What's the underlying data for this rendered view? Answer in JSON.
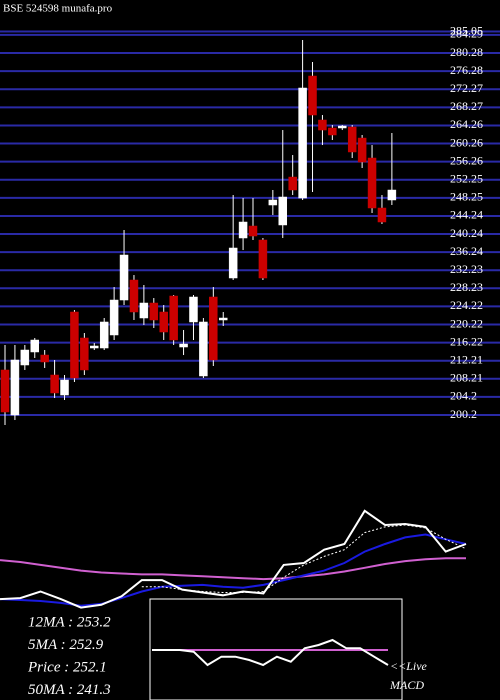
{
  "chart_data": [
    {
      "type": "candlestick",
      "title": "BSE 524598  munafa.pro",
      "categories": [
        null,
        null,
        null,
        null,
        null,
        null,
        null,
        null,
        null,
        null,
        null,
        null,
        null,
        null,
        null,
        null,
        null,
        null,
        null,
        null,
        null,
        null,
        null,
        null,
        null,
        null,
        null,
        null,
        null,
        null,
        null,
        null,
        null,
        null,
        null,
        null,
        null,
        null,
        null,
        null
      ],
      "open": [
        210.16,
        200.2,
        211.26,
        214.14,
        213.47,
        209.05,
        204.62,
        222.99,
        217.24,
        215.02,
        215.02,
        217.9,
        225.64,
        230.07,
        221.66,
        224.98,
        222.99,
        226.53,
        215.24,
        220.78,
        208.83,
        226.31,
        221.22,
        230.51,
        239.36,
        242.01,
        238.92,
        246.66,
        242.24,
        252.85,
        248.21,
        275.2,
        265.47,
        263.7,
        263.7,
        263.92,
        261.48,
        257.06,
        246.0,
        247.77
      ],
      "high": [
        215.69,
        215.69,
        215.69,
        217.24,
        214.58,
        212.37,
        209.05,
        223.43,
        218.34,
        216.13,
        221.66,
        228.52,
        241.13,
        231.17,
        228.96,
        226.08,
        224.54,
        226.75,
        219.01,
        226.75,
        221.66,
        228.52,
        222.99,
        248.87,
        248.21,
        248.21,
        239.36,
        249.98,
        263.25,
        257.72,
        283.16,
        278.3,
        266.57,
        264.36,
        264.36,
        264.36,
        262.15,
        259.93,
        248.87,
        262.59
      ],
      "low": [
        197.99,
        199.09,
        210.16,
        212.81,
        210.6,
        203.96,
        203.52,
        207.5,
        209.05,
        214.58,
        214.58,
        216.79,
        224.54,
        221.22,
        220.11,
        219.45,
        216.79,
        215.69,
        213.47,
        216.79,
        208.39,
        211.04,
        219.89,
        230.07,
        236.7,
        238.92,
        230.07,
        244.45,
        239.36,
        248.87,
        247.77,
        249.54,
        259.93,
        261.04,
        263.25,
        257.06,
        254.85,
        244.89,
        242.46,
        246.66
      ],
      "close": [
        200.86,
        212.37,
        214.58,
        216.79,
        211.93,
        205.07,
        207.94,
        208.39,
        210.16,
        215.47,
        220.78,
        225.64,
        235.6,
        222.99,
        224.98,
        221.22,
        218.56,
        216.79,
        215.91,
        226.31,
        220.78,
        212.37,
        221.66,
        237.15,
        242.9,
        239.8,
        230.51,
        247.77,
        248.43,
        249.98,
        272.55,
        266.57,
        263.25,
        262.15,
        264.14,
        258.39,
        256.17,
        246.0,
        242.9,
        249.98
      ],
      "up_color": "#ffffff",
      "down_color": "#cc0000",
      "ylim": [
        200.2,
        285.05
      ],
      "yticks": [
        200.2,
        204.2,
        208.21,
        212.21,
        216.22,
        220.22,
        224.22,
        228.23,
        232.23,
        236.24,
        240.24,
        244.24,
        248.25,
        252.25,
        256.26,
        260.26,
        264.26,
        268.27,
        272.27,
        276.28,
        280.28,
        284.29,
        285.05
      ],
      "grid": true,
      "grid_color": "#2a2aa6"
    },
    {
      "type": "line",
      "x": [
        0,
        1,
        2,
        3,
        4,
        5,
        6,
        7,
        8,
        9,
        10,
        11,
        12,
        13,
        14,
        15,
        16,
        17,
        18,
        19,
        20,
        21,
        22,
        23
      ],
      "xlim": [
        0,
        23
      ],
      "ylim": [
        0,
        200
      ],
      "series": [
        {
          "color": "#d060d0",
          "dashed": false,
          "values": [
            63,
            61,
            58,
            55,
            52,
            50,
            49,
            48,
            48,
            47,
            46,
            45,
            44,
            43,
            44,
            46,
            48,
            51,
            55,
            59,
            62,
            64,
            65,
            65
          ]
        },
        {
          "color": "#1a1ae0",
          "dashed": false,
          "values": [
            22,
            21,
            20,
            18,
            15,
            17,
            23,
            30,
            35,
            36,
            37,
            35,
            34,
            37,
            42,
            47,
            52,
            60,
            72,
            80,
            87,
            90,
            85,
            80
          ]
        },
        {
          "color": "#ffffff",
          "dashed": true,
          "values": [
            null,
            null,
            null,
            null,
            null,
            null,
            null,
            35,
            35,
            32,
            30,
            29,
            29,
            30,
            45,
            58,
            67,
            74,
            92,
            98,
            100,
            97,
            85,
            75
          ]
        },
        {
          "color": "#ffffff",
          "dashed": false,
          "values": [
            22,
            23,
            30,
            22,
            13,
            16,
            25,
            42,
            42,
            32,
            29,
            26,
            30,
            28,
            58,
            60,
            74,
            80,
            115,
            100,
            101,
            98,
            72,
            80
          ]
        }
      ]
    },
    {
      "type": "line",
      "x": [
        0,
        1,
        2,
        3,
        4,
        5,
        6,
        7,
        8,
        9,
        10,
        11,
        12,
        13,
        14,
        15,
        16,
        17
      ],
      "xlim": [
        0,
        17
      ],
      "ylim": [
        -30,
        30
      ],
      "annotations": [
        "<<Live",
        "MACD"
      ],
      "series": [
        {
          "color": "#d060d0",
          "dashed": false,
          "values": [
            0,
            0,
            0,
            0,
            0,
            0,
            0,
            0,
            0,
            0,
            0,
            0,
            0,
            0,
            0,
            0,
            0,
            0
          ]
        },
        {
          "color": "#ffffff",
          "dashed": false,
          "values": [
            0,
            0,
            0,
            -1,
            -9,
            -4,
            -4,
            -6,
            -9,
            -4,
            -7,
            1,
            3,
            6,
            1,
            1,
            -4,
            -9
          ]
        }
      ]
    }
  ],
  "stats": [
    "12MA : 253.2",
    "5MA : 252.9",
    "Price  : 252.1",
    "50MA : 241.3"
  ]
}
